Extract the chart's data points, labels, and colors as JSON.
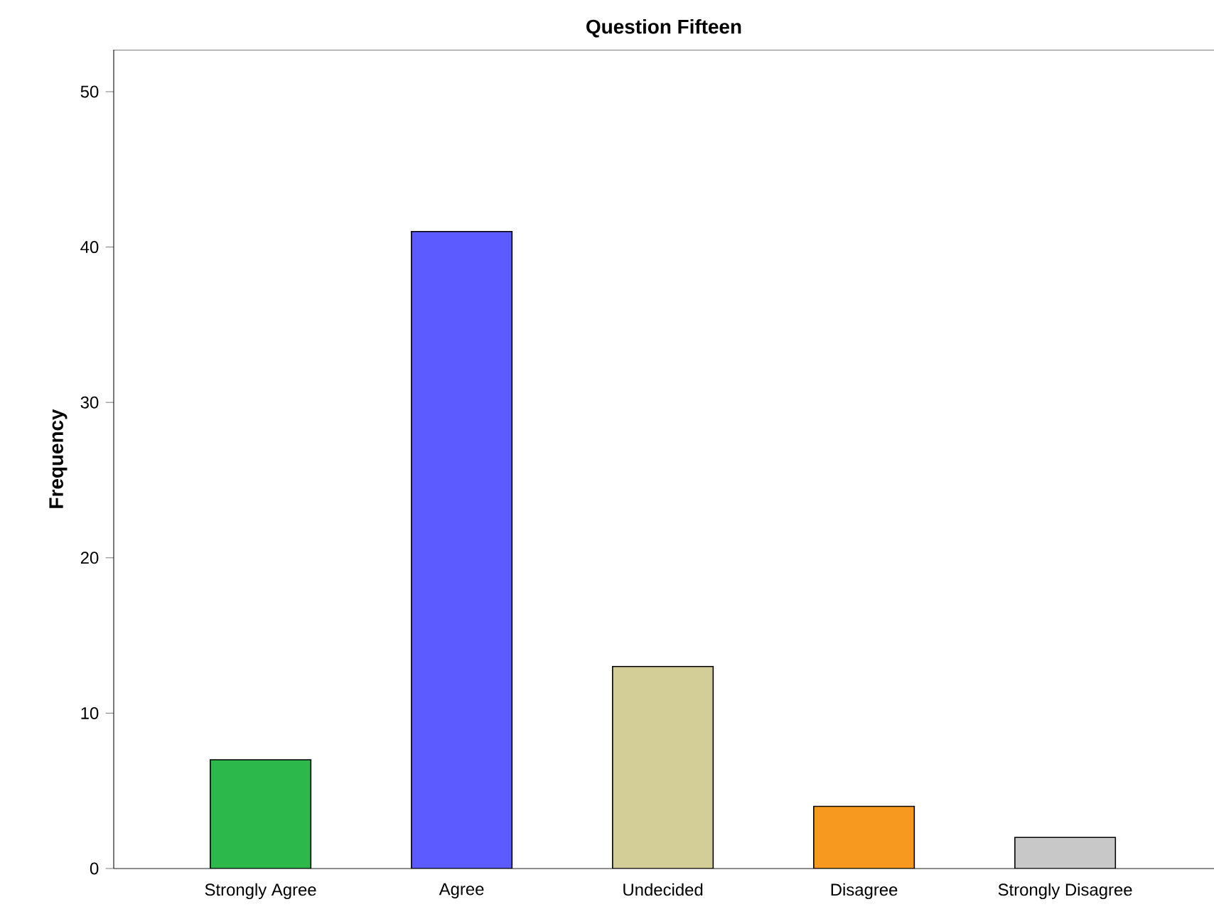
{
  "chart_data": {
    "type": "bar",
    "title": "Question Fifteen",
    "ylabel": "Frequency",
    "categories": [
      "Strongly Agree",
      "Agree",
      "Undecided",
      "Disagree",
      "Strongly Disagree"
    ],
    "values": [
      7,
      41,
      13,
      4,
      2
    ],
    "colors": [
      "#2db84b",
      "#5b5bff",
      "#d3ce97",
      "#f7991f",
      "#c8c8c8"
    ],
    "ylim": [
      0,
      52.7
    ],
    "yticks": [
      0,
      10,
      20,
      30,
      40,
      50
    ]
  }
}
